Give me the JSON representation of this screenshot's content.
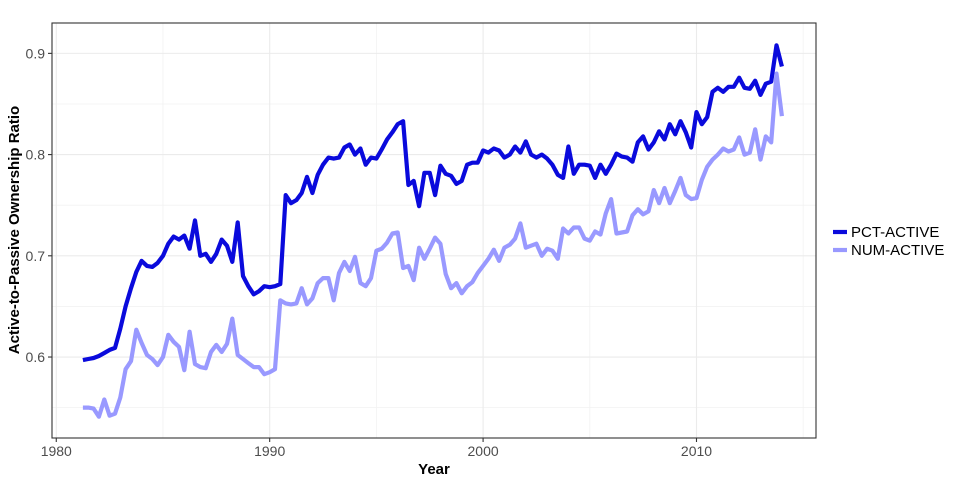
{
  "chart_data": {
    "type": "line",
    "title": "",
    "xlabel": "Year",
    "ylabel": "Active-to-Passive Ownership Ratio",
    "xlim": [
      1979.8,
      2015.6
    ],
    "ylim": [
      0.52,
      0.93
    ],
    "x_ticks": [
      1980,
      1990,
      2000,
      2010
    ],
    "x_tick_labels": [
      "1980",
      "1990",
      "2000",
      "2010"
    ],
    "y_ticks": [
      0.6,
      0.7,
      0.8,
      0.9
    ],
    "y_tick_labels": [
      "0.6",
      "0.7",
      "0.8",
      "0.9"
    ],
    "grid": true,
    "legend_position": "right",
    "series": [
      {
        "name": "PCT-ACTIVE",
        "color": "#0a0adc",
        "points": [
          [
            1981.25,
            0.597
          ],
          [
            1981.5,
            0.598
          ],
          [
            1981.75,
            0.599
          ],
          [
            1982.0,
            0.601
          ],
          [
            1982.25,
            0.604
          ],
          [
            1982.5,
            0.607
          ],
          [
            1982.75,
            0.609
          ],
          [
            1983.0,
            0.628
          ],
          [
            1983.25,
            0.65
          ],
          [
            1983.5,
            0.668
          ],
          [
            1983.75,
            0.684
          ],
          [
            1984.0,
            0.695
          ],
          [
            1984.25,
            0.69
          ],
          [
            1984.5,
            0.689
          ],
          [
            1984.75,
            0.693
          ],
          [
            1985.0,
            0.7
          ],
          [
            1985.25,
            0.712
          ],
          [
            1985.5,
            0.719
          ],
          [
            1985.75,
            0.716
          ],
          [
            1986.0,
            0.72
          ],
          [
            1986.25,
            0.707
          ],
          [
            1986.5,
            0.735
          ],
          [
            1986.75,
            0.7
          ],
          [
            1987.0,
            0.702
          ],
          [
            1987.25,
            0.694
          ],
          [
            1987.5,
            0.702
          ],
          [
            1987.75,
            0.716
          ],
          [
            1988.0,
            0.71
          ],
          [
            1988.25,
            0.694
          ],
          [
            1988.5,
            0.733
          ],
          [
            1988.75,
            0.68
          ],
          [
            1989.0,
            0.67
          ],
          [
            1989.25,
            0.662
          ],
          [
            1989.5,
            0.665
          ],
          [
            1989.75,
            0.67
          ],
          [
            1990.0,
            0.669
          ],
          [
            1990.25,
            0.67
          ],
          [
            1990.5,
            0.672
          ],
          [
            1990.75,
            0.76
          ],
          [
            1991.0,
            0.752
          ],
          [
            1991.25,
            0.755
          ],
          [
            1991.5,
            0.762
          ],
          [
            1991.75,
            0.778
          ],
          [
            1992.0,
            0.762
          ],
          [
            1992.25,
            0.78
          ],
          [
            1992.5,
            0.79
          ],
          [
            1992.75,
            0.797
          ],
          [
            1993.0,
            0.796
          ],
          [
            1993.25,
            0.797
          ],
          [
            1993.5,
            0.807
          ],
          [
            1993.75,
            0.81
          ],
          [
            1994.0,
            0.8
          ],
          [
            1994.25,
            0.806
          ],
          [
            1994.5,
            0.79
          ],
          [
            1994.75,
            0.797
          ],
          [
            1995.0,
            0.796
          ],
          [
            1995.25,
            0.805
          ],
          [
            1995.5,
            0.815
          ],
          [
            1995.75,
            0.822
          ],
          [
            1996.0,
            0.83
          ],
          [
            1996.25,
            0.833
          ],
          [
            1996.5,
            0.77
          ],
          [
            1996.75,
            0.774
          ],
          [
            1997.0,
            0.749
          ],
          [
            1997.25,
            0.782
          ],
          [
            1997.5,
            0.782
          ],
          [
            1997.75,
            0.76
          ],
          [
            1998.0,
            0.789
          ],
          [
            1998.25,
            0.781
          ],
          [
            1998.5,
            0.779
          ],
          [
            1998.75,
            0.771
          ],
          [
            1999.0,
            0.774
          ],
          [
            1999.25,
            0.79
          ],
          [
            1999.5,
            0.792
          ],
          [
            1999.75,
            0.792
          ],
          [
            2000.0,
            0.804
          ],
          [
            2000.25,
            0.802
          ],
          [
            2000.5,
            0.806
          ],
          [
            2000.75,
            0.804
          ],
          [
            2001.0,
            0.797
          ],
          [
            2001.25,
            0.8
          ],
          [
            2001.5,
            0.808
          ],
          [
            2001.75,
            0.802
          ],
          [
            2002.0,
            0.813
          ],
          [
            2002.25,
            0.8
          ],
          [
            2002.5,
            0.797
          ],
          [
            2002.75,
            0.8
          ],
          [
            2003.0,
            0.796
          ],
          [
            2003.25,
            0.79
          ],
          [
            2003.5,
            0.78
          ],
          [
            2003.75,
            0.777
          ],
          [
            2004.0,
            0.808
          ],
          [
            2004.25,
            0.781
          ],
          [
            2004.5,
            0.79
          ],
          [
            2004.75,
            0.79
          ],
          [
            2005.0,
            0.789
          ],
          [
            2005.25,
            0.777
          ],
          [
            2005.5,
            0.79
          ],
          [
            2005.75,
            0.781
          ],
          [
            2006.0,
            0.79
          ],
          [
            2006.25,
            0.801
          ],
          [
            2006.5,
            0.798
          ],
          [
            2006.75,
            0.797
          ],
          [
            2007.0,
            0.793
          ],
          [
            2007.25,
            0.812
          ],
          [
            2007.5,
            0.818
          ],
          [
            2007.75,
            0.805
          ],
          [
            2008.0,
            0.812
          ],
          [
            2008.25,
            0.823
          ],
          [
            2008.5,
            0.815
          ],
          [
            2008.75,
            0.83
          ],
          [
            2009.0,
            0.82
          ],
          [
            2009.25,
            0.833
          ],
          [
            2009.5,
            0.822
          ],
          [
            2009.75,
            0.807
          ],
          [
            2010.0,
            0.842
          ],
          [
            2010.25,
            0.83
          ],
          [
            2010.5,
            0.837
          ],
          [
            2010.75,
            0.862
          ],
          [
            2011.0,
            0.866
          ],
          [
            2011.25,
            0.862
          ],
          [
            2011.5,
            0.867
          ],
          [
            2011.75,
            0.867
          ],
          [
            2012.0,
            0.876
          ],
          [
            2012.25,
            0.866
          ],
          [
            2012.5,
            0.865
          ],
          [
            2012.75,
            0.873
          ],
          [
            2013.0,
            0.859
          ],
          [
            2013.25,
            0.87
          ],
          [
            2013.5,
            0.872
          ],
          [
            2013.75,
            0.908
          ],
          [
            2014.0,
            0.887
          ]
        ]
      },
      {
        "name": "NUM-ACTIVE",
        "color": "#9999ff",
        "points": [
          [
            1981.25,
            0.55
          ],
          [
            1981.5,
            0.55
          ],
          [
            1981.75,
            0.549
          ],
          [
            1982.0,
            0.541
          ],
          [
            1982.25,
            0.558
          ],
          [
            1982.5,
            0.542
          ],
          [
            1982.75,
            0.544
          ],
          [
            1983.0,
            0.56
          ],
          [
            1983.25,
            0.588
          ],
          [
            1983.5,
            0.596
          ],
          [
            1983.75,
            0.627
          ],
          [
            1984.0,
            0.614
          ],
          [
            1984.25,
            0.602
          ],
          [
            1984.5,
            0.598
          ],
          [
            1984.75,
            0.592
          ],
          [
            1985.0,
            0.6
          ],
          [
            1985.25,
            0.622
          ],
          [
            1985.5,
            0.615
          ],
          [
            1985.75,
            0.61
          ],
          [
            1986.0,
            0.587
          ],
          [
            1986.25,
            0.625
          ],
          [
            1986.5,
            0.593
          ],
          [
            1986.75,
            0.59
          ],
          [
            1987.0,
            0.589
          ],
          [
            1987.25,
            0.605
          ],
          [
            1987.5,
            0.612
          ],
          [
            1987.75,
            0.605
          ],
          [
            1988.0,
            0.613
          ],
          [
            1988.25,
            0.638
          ],
          [
            1988.5,
            0.602
          ],
          [
            1988.75,
            0.598
          ],
          [
            1989.0,
            0.594
          ],
          [
            1989.25,
            0.59
          ],
          [
            1989.5,
            0.59
          ],
          [
            1989.75,
            0.583
          ],
          [
            1990.0,
            0.585
          ],
          [
            1990.25,
            0.588
          ],
          [
            1990.5,
            0.656
          ],
          [
            1990.75,
            0.653
          ],
          [
            1991.0,
            0.652
          ],
          [
            1991.25,
            0.653
          ],
          [
            1991.5,
            0.668
          ],
          [
            1991.75,
            0.652
          ],
          [
            1992.0,
            0.658
          ],
          [
            1992.25,
            0.673
          ],
          [
            1992.5,
            0.678
          ],
          [
            1992.75,
            0.678
          ],
          [
            1993.0,
            0.656
          ],
          [
            1993.25,
            0.683
          ],
          [
            1993.5,
            0.694
          ],
          [
            1993.75,
            0.685
          ],
          [
            1994.0,
            0.699
          ],
          [
            1994.25,
            0.673
          ],
          [
            1994.5,
            0.67
          ],
          [
            1994.75,
            0.678
          ],
          [
            1995.0,
            0.705
          ],
          [
            1995.25,
            0.707
          ],
          [
            1995.5,
            0.713
          ],
          [
            1995.75,
            0.722
          ],
          [
            1996.0,
            0.723
          ],
          [
            1996.25,
            0.688
          ],
          [
            1996.5,
            0.69
          ],
          [
            1996.75,
            0.676
          ],
          [
            1997.0,
            0.708
          ],
          [
            1997.25,
            0.697
          ],
          [
            1997.5,
            0.707
          ],
          [
            1997.75,
            0.718
          ],
          [
            1998.0,
            0.712
          ],
          [
            1998.25,
            0.682
          ],
          [
            1998.5,
            0.668
          ],
          [
            1998.75,
            0.673
          ],
          [
            1999.0,
            0.663
          ],
          [
            1999.25,
            0.67
          ],
          [
            1999.5,
            0.674
          ],
          [
            1999.75,
            0.683
          ],
          [
            2000.0,
            0.69
          ],
          [
            2000.25,
            0.697
          ],
          [
            2000.5,
            0.706
          ],
          [
            2000.75,
            0.695
          ],
          [
            2001.0,
            0.708
          ],
          [
            2001.25,
            0.711
          ],
          [
            2001.5,
            0.717
          ],
          [
            2001.75,
            0.732
          ],
          [
            2002.0,
            0.708
          ],
          [
            2002.25,
            0.71
          ],
          [
            2002.5,
            0.712
          ],
          [
            2002.75,
            0.7
          ],
          [
            2003.0,
            0.707
          ],
          [
            2003.25,
            0.705
          ],
          [
            2003.5,
            0.697
          ],
          [
            2003.75,
            0.727
          ],
          [
            2004.0,
            0.722
          ],
          [
            2004.25,
            0.728
          ],
          [
            2004.5,
            0.728
          ],
          [
            2004.75,
            0.717
          ],
          [
            2005.0,
            0.715
          ],
          [
            2005.25,
            0.724
          ],
          [
            2005.5,
            0.721
          ],
          [
            2005.75,
            0.742
          ],
          [
            2006.0,
            0.756
          ],
          [
            2006.25,
            0.722
          ],
          [
            2006.5,
            0.723
          ],
          [
            2006.75,
            0.724
          ],
          [
            2007.0,
            0.74
          ],
          [
            2007.25,
            0.746
          ],
          [
            2007.5,
            0.741
          ],
          [
            2007.75,
            0.744
          ],
          [
            2008.0,
            0.765
          ],
          [
            2008.25,
            0.752
          ],
          [
            2008.5,
            0.767
          ],
          [
            2008.75,
            0.752
          ],
          [
            2009.0,
            0.764
          ],
          [
            2009.25,
            0.777
          ],
          [
            2009.5,
            0.76
          ],
          [
            2009.75,
            0.756
          ],
          [
            2010.0,
            0.757
          ],
          [
            2010.25,
            0.775
          ],
          [
            2010.5,
            0.788
          ],
          [
            2010.75,
            0.795
          ],
          [
            2011.0,
            0.8
          ],
          [
            2011.25,
            0.806
          ],
          [
            2011.5,
            0.803
          ],
          [
            2011.75,
            0.805
          ],
          [
            2012.0,
            0.817
          ],
          [
            2012.25,
            0.8
          ],
          [
            2012.5,
            0.802
          ],
          [
            2012.75,
            0.825
          ],
          [
            2013.0,
            0.795
          ],
          [
            2013.25,
            0.818
          ],
          [
            2013.5,
            0.812
          ],
          [
            2013.75,
            0.88
          ],
          [
            2014.0,
            0.838
          ]
        ]
      }
    ]
  }
}
